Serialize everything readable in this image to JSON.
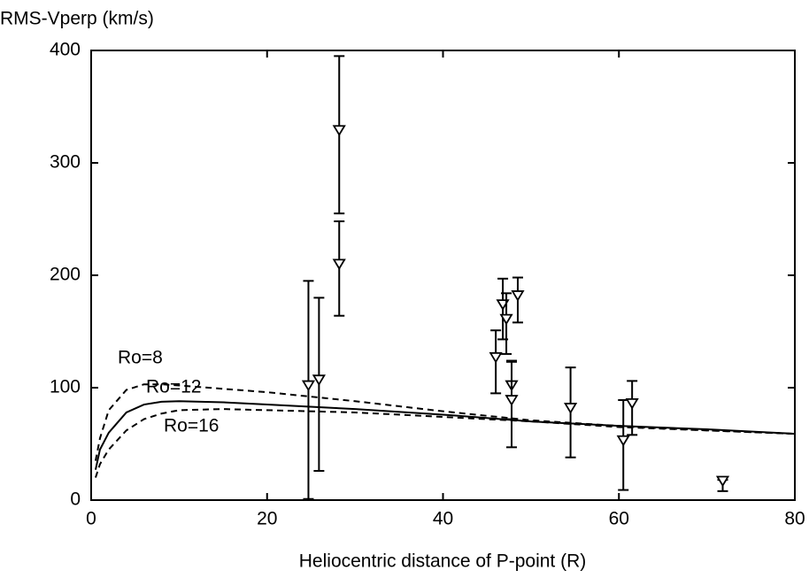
{
  "chart_data": {
    "type": "line",
    "y_label": "RMS-Vperp (km/s)",
    "x_label": "Heliocentric distance of P-point (R)",
    "xlim": [
      0,
      80
    ],
    "xticks": [
      0,
      20,
      40,
      60,
      80
    ],
    "ylim": [
      0,
      400
    ],
    "yticks": [
      0,
      100,
      200,
      300,
      400
    ],
    "x": [
      0.5,
      1,
      2,
      4,
      6,
      8,
      10,
      15,
      20,
      30,
      40,
      50,
      60,
      70,
      80
    ],
    "series": [
      {
        "name": "Ro=8",
        "color": "#000000",
        "dashed": true,
        "values": [
          35,
          55,
          80,
          98,
          103,
          103,
          102,
          99,
          96,
          88,
          79,
          71,
          66,
          62,
          59
        ]
      },
      {
        "name": "Ro=12",
        "color": "#000000",
        "dashed": false,
        "values": [
          27,
          45,
          60,
          78,
          85,
          87.5,
          88,
          87,
          85,
          81,
          76,
          70,
          66,
          63,
          59
        ]
      },
      {
        "name": "Ro=16",
        "color": "#000000",
        "dashed": true,
        "values": [
          20,
          32,
          45,
          62,
          72,
          77,
          80,
          81,
          80,
          78,
          74,
          70,
          65,
          62,
          59
        ]
      }
    ],
    "measurements": {
      "type": "errorbar",
      "color": "#000000",
      "x": [
        24.7,
        25.9,
        28.2,
        28.2,
        46,
        46.8,
        47.2,
        47.8,
        47.8,
        48.5,
        54.5,
        60.5,
        61.5,
        71.8
      ],
      "values": [
        98,
        103,
        325,
        206,
        123,
        170,
        157,
        98,
        85,
        178,
        78,
        49,
        82,
        13
      ],
      "errors": [
        97,
        77,
        70,
        42,
        28,
        27,
        27,
        26,
        38,
        20,
        40,
        40,
        24,
        5
      ]
    }
  }
}
